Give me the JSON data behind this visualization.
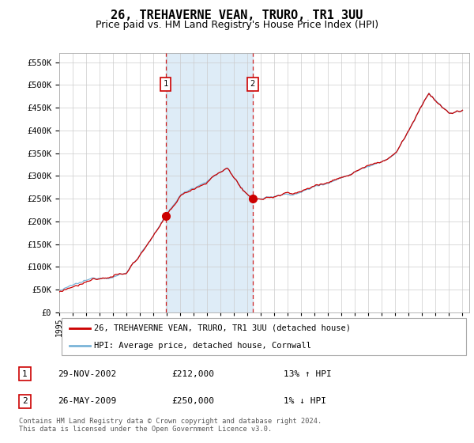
{
  "title": "26, TREHAVERNE VEAN, TRURO, TR1 3UU",
  "subtitle": "Price paid vs. HM Land Registry's House Price Index (HPI)",
  "yticks": [
    0,
    50000,
    100000,
    150000,
    200000,
    250000,
    300000,
    350000,
    400000,
    450000,
    500000,
    550000
  ],
  "xlim_start": 1995.0,
  "xlim_end": 2025.5,
  "ylim_min": 0,
  "ylim_max": 570000,
  "sale1_date": 2002.91,
  "sale1_price": 212000,
  "sale2_date": 2009.39,
  "sale2_price": 250000,
  "hpi_color": "#7ab4d8",
  "price_color": "#cc0000",
  "vline_color": "#cc0000",
  "shade_color": "#d0e4f5",
  "plot_bg": "#ffffff",
  "grid_color": "#cccccc",
  "title_fontsize": 11,
  "subtitle_fontsize": 9,
  "legend1_text": "26, TREHAVERNE VEAN, TRURO, TR1 3UU (detached house)",
  "legend2_text": "HPI: Average price, detached house, Cornwall",
  "table_row1": [
    "1",
    "29-NOV-2002",
    "£212,000",
    "13% ↑ HPI"
  ],
  "table_row2": [
    "2",
    "26-MAY-2009",
    "£250,000",
    "1% ↓ HPI"
  ],
  "footnote": "Contains HM Land Registry data © Crown copyright and database right 2024.\nThis data is licensed under the Open Government Licence v3.0."
}
